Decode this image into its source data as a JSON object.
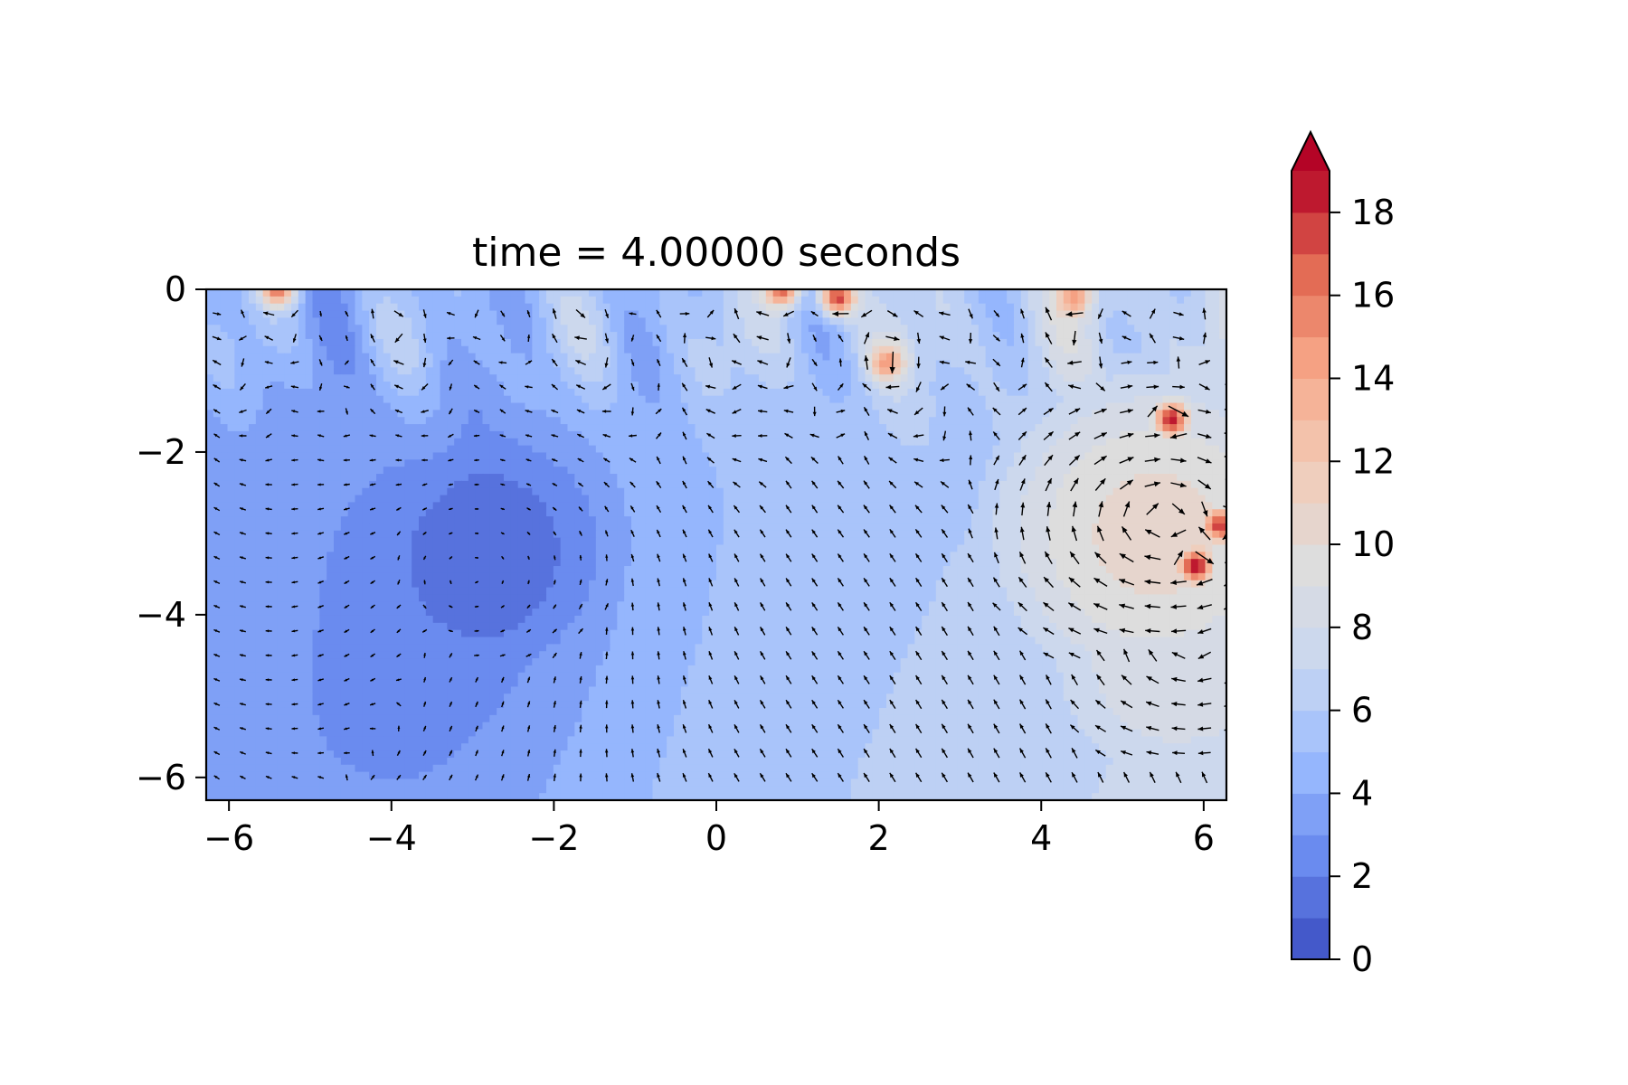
{
  "chart_data": {
    "type": "heatmap",
    "subtype": "filled-contour with quiver (vector) overlay",
    "title": "time = 4.00000 seconds",
    "xlabel": "",
    "ylabel": "",
    "xlim": [
      -6.28,
      6.28
    ],
    "ylim": [
      -6.28,
      0
    ],
    "x_ticks": [
      -6,
      -4,
      -2,
      0,
      2,
      4,
      6
    ],
    "x_tick_labels": [
      "−6",
      "−4",
      "−2",
      "0",
      "2",
      "4",
      "6"
    ],
    "y_ticks": [
      0,
      -2,
      -4,
      -6
    ],
    "y_tick_labels": [
      "0",
      "−2",
      "−4",
      "−6"
    ],
    "colormap": "coolwarm",
    "colormap_stops": [
      "#3b4cc0",
      "#6788ee",
      "#9abbff",
      "#c9d7f0",
      "#dddddd",
      "#f2cbb7",
      "#f7a889",
      "#e26952",
      "#b40426"
    ],
    "colorbar": {
      "range": [
        0,
        19
      ],
      "levels_step": 1,
      "extend": "max",
      "extend_color": "#b40426",
      "ticks": [
        0,
        2,
        4,
        6,
        8,
        10,
        12,
        14,
        16,
        18
      ],
      "tick_labels": [
        "0",
        "2",
        "4",
        "6",
        "8",
        "10",
        "12",
        "14",
        "16",
        "18"
      ]
    },
    "field_features": [
      {
        "kind": "minimum",
        "x": -2.8,
        "y": -3.1,
        "value": 1.3
      },
      {
        "kind": "low_region",
        "x": -3.5,
        "y": -5.5,
        "value": 2.0
      },
      {
        "kind": "peak",
        "x": 5.6,
        "y": -1.6,
        "value": 19
      },
      {
        "kind": "peak",
        "x": 5.9,
        "y": -3.4,
        "value": 19
      },
      {
        "kind": "peak",
        "x": 6.2,
        "y": -2.9,
        "value": 18
      },
      {
        "kind": "peak",
        "x": 1.5,
        "y": -0.1,
        "value": 18
      },
      {
        "kind": "peak",
        "x": 0.8,
        "y": 0.0,
        "value": 17
      },
      {
        "kind": "peak",
        "x": -5.4,
        "y": 0.0,
        "value": 16
      },
      {
        "kind": "peak",
        "x": 2.1,
        "y": -0.9,
        "value": 15
      },
      {
        "kind": "peak",
        "x": 4.4,
        "y": -0.1,
        "value": 15
      },
      {
        "kind": "warm_region",
        "x": 5.4,
        "y": -3.0,
        "value": 10.5
      },
      {
        "kind": "warm_region",
        "x": 5.7,
        "y": -4.5,
        "value": 9
      }
    ],
    "quiver": {
      "grid_x": {
        "start": -6.15,
        "step": 0.32,
        "count": 40
      },
      "grid_y": {
        "start": -0.3,
        "step": -0.3,
        "count": 20
      },
      "color": "#000000"
    }
  }
}
